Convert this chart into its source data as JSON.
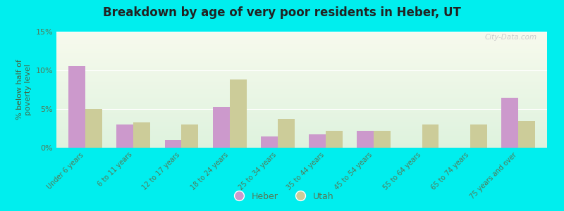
{
  "title": "Breakdown by age of very poor residents in Heber, UT",
  "ylabel": "% below half of\npoverty level",
  "categories": [
    "Under 6 years",
    "6 to 11 years",
    "12 to 17 years",
    "18 to 24 years",
    "25 to 34 years",
    "35 to 44 years",
    "45 to 54 years",
    "55 to 64 years",
    "65 to 74 years",
    "75 years and over"
  ],
  "heber_values": [
    10.5,
    3.0,
    1.0,
    5.3,
    1.5,
    1.7,
    2.2,
    0.0,
    0.0,
    6.5
  ],
  "utah_values": [
    5.0,
    3.3,
    3.0,
    8.8,
    3.7,
    2.2,
    2.2,
    3.0,
    3.0,
    3.5
  ],
  "heber_color": "#cc99cc",
  "utah_color": "#cccc99",
  "ylim": [
    0,
    15
  ],
  "yticks": [
    0,
    5,
    10,
    15
  ],
  "ytick_labels": [
    "0%",
    "5%",
    "10%",
    "15%"
  ],
  "outer_bg": "#00eeee",
  "bar_width": 0.35,
  "legend_labels": [
    "Heber",
    "Utah"
  ],
  "watermark": "City-Data.com",
  "tick_color": "#557755",
  "label_color": "#446644"
}
